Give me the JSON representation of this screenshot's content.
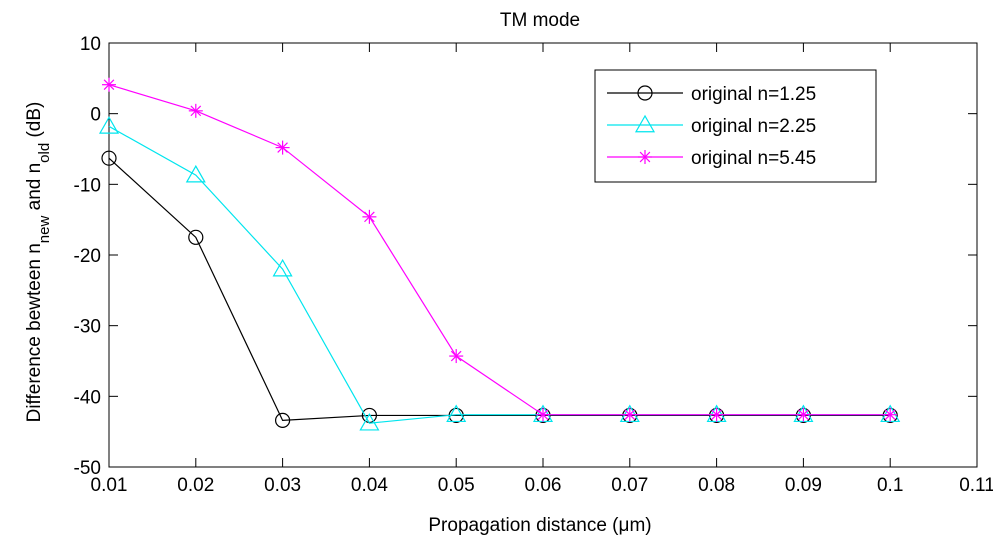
{
  "chart_data": {
    "type": "line",
    "title": "TM mode",
    "xlabel": "Propagation distance (μm)",
    "ylabel_parts": {
      "prefix": "Difference bewteen n",
      "sub1": "new",
      "middle": " and n",
      "sub2": "old",
      "suffix": " (dB)"
    },
    "xlim": [
      0.01,
      0.11
    ],
    "ylim": [
      -50,
      10
    ],
    "xticks": [
      0.01,
      0.02,
      0.03,
      0.04,
      0.05,
      0.06,
      0.07,
      0.08,
      0.09,
      0.1,
      0.11
    ],
    "xtick_labels": [
      "0.01",
      "0.02",
      "0.03",
      "0.04",
      "0.05",
      "0.06",
      "0.07",
      "0.08",
      "0.09",
      "0.1",
      "0.11"
    ],
    "yticks": [
      -50,
      -40,
      -30,
      -20,
      -10,
      0,
      10
    ],
    "ytick_labels": [
      "-50",
      "-40",
      "-30",
      "-20",
      "-10",
      "0",
      "10"
    ],
    "grid": false,
    "legend_position": "top-right",
    "x": [
      0.01,
      0.02,
      0.03,
      0.04,
      0.05,
      0.06,
      0.07,
      0.08,
      0.09,
      0.1
    ],
    "series": [
      {
        "name": "original n=1.25",
        "color": "#000000",
        "marker": "circle",
        "values": [
          -6.3,
          -17.5,
          -43.4,
          -42.7,
          -42.7,
          -42.7,
          -42.7,
          -42.7,
          -42.7,
          -42.7
        ]
      },
      {
        "name": "original n=2.25",
        "color": "#00e5ee",
        "marker": "triangle",
        "values": [
          -1.8,
          -8.7,
          -22.0,
          -43.8,
          -42.6,
          -42.6,
          -42.6,
          -42.6,
          -42.6,
          -42.6
        ]
      },
      {
        "name": "original n=5.45",
        "color": "#ff00ff",
        "marker": "asterisk",
        "values": [
          4.1,
          0.4,
          -4.8,
          -14.6,
          -34.3,
          -42.6,
          -42.6,
          -42.6,
          -42.6,
          -42.6
        ]
      }
    ]
  }
}
